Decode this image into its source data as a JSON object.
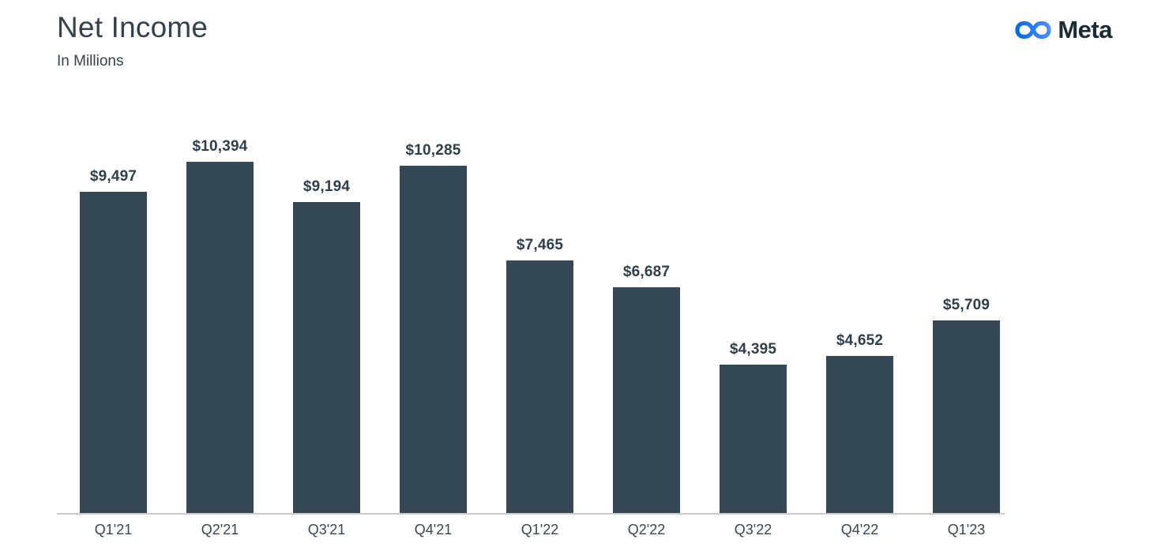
{
  "header": {
    "title": "Net Income",
    "subtitle": "In Millions"
  },
  "logo": {
    "brand": "Meta",
    "icon": "meta-infinity-icon",
    "gradient_start": "#0668E1",
    "gradient_end": "#4E8EFA",
    "wordmark_color": "#1C2B33"
  },
  "colors": {
    "background": "#FFFFFF",
    "bar": "#344955",
    "title_text": "#33424E",
    "value_label_text": "#2E3F4B",
    "tick_label_text": "#3A4750",
    "axis_line": "#CCCCCC"
  },
  "chart_data": {
    "type": "bar",
    "title": "Net Income",
    "subtitle": "In Millions",
    "categories": [
      "Q1'21",
      "Q2'21",
      "Q3'21",
      "Q4'21",
      "Q1'22",
      "Q2'22",
      "Q3'22",
      "Q4'22",
      "Q1'23"
    ],
    "values": [
      9497,
      10394,
      9194,
      10285,
      7465,
      6687,
      4395,
      4652,
      5709
    ],
    "value_labels": [
      "$9,497",
      "$10,394",
      "$9,194",
      "$10,285",
      "$7,465",
      "$6,687",
      "$4,395",
      "$4,652",
      "$5,709"
    ],
    "ylim": [
      0,
      10394
    ],
    "grid": false,
    "legend": false,
    "data_labels_position": "above-bars"
  }
}
